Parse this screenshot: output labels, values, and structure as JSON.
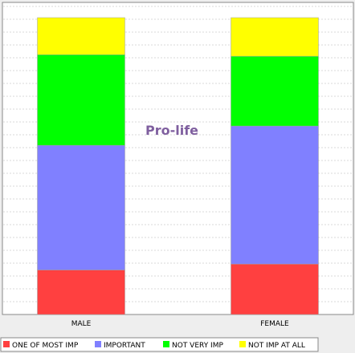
{
  "chart_data": {
    "type": "bar",
    "stacked": true,
    "percent_stacked": true,
    "title": "Pro-life",
    "categories": [
      "MALE",
      "FEMALE"
    ],
    "ylim": [
      0,
      100
    ],
    "grid": true,
    "legend_position": "bottom-left",
    "series": [
      {
        "name": "ONE OF MOST IMP",
        "color": "#ff4040",
        "values": [
          15,
          17
        ]
      },
      {
        "name": "IMPORTANT",
        "color": "#8080ff",
        "values": [
          42,
          46.5
        ]
      },
      {
        "name": "NOT VERY IMP",
        "color": "#00ff00",
        "values": [
          30.5,
          23.5
        ]
      },
      {
        "name": "NOT IMP AT ALL",
        "color": "#ffff00",
        "values": [
          12.5,
          13
        ]
      }
    ]
  },
  "colors": {
    "title": "#7f5f9f",
    "plot_background": "#ffffff",
    "gridline": "#d8d8d8"
  }
}
